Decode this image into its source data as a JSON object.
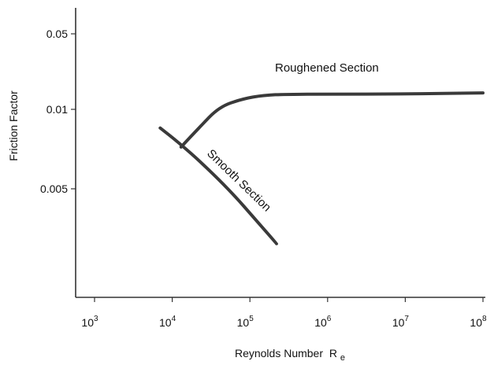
{
  "chart_data": {
    "type": "line",
    "title": "",
    "xlabel": "Reynolds Number",
    "xlabel_subscript": {
      "base": "R",
      "sub": "e"
    },
    "ylabel": "Friction Factor",
    "x_scale": "log",
    "x_ticks": [
      {
        "value": 1000,
        "base": "10",
        "exp": "3"
      },
      {
        "value": 10000,
        "base": "10",
        "exp": "4"
      },
      {
        "value": 100000,
        "base": "10",
        "exp": "5"
      },
      {
        "value": 1000000,
        "base": "10",
        "exp": "6"
      },
      {
        "value": 10000000,
        "base": "10",
        "exp": "7"
      },
      {
        "value": 100000000,
        "base": "10",
        "exp": "8"
      }
    ],
    "y_ticks": [
      {
        "value": 0.05,
        "label": "0.05"
      },
      {
        "value": 0.01,
        "label": "0.01"
      },
      {
        "value": 0.005,
        "label": "0.005"
      }
    ],
    "xlim": [
      500,
      120000000
    ],
    "y_ticks_at_fraction": [
      0.08,
      0.34,
      0.6
    ],
    "grid": false,
    "series": [
      {
        "name": "Smooth Section",
        "label": "Smooth Section",
        "color": "#3a3a3a",
        "points": [
          {
            "x": 7000,
            "y": 0.0085
          },
          {
            "x": 12000,
            "y": 0.0075
          },
          {
            "x": 25000,
            "y": 0.0062
          },
          {
            "x": 60000,
            "y": 0.0048
          },
          {
            "x": 120000,
            "y": 0.0038
          },
          {
            "x": 220000,
            "y": 0.0031
          }
        ]
      },
      {
        "name": "Roughened Section",
        "label": "Roughened Section",
        "color": "#3a3a3a",
        "points": [
          {
            "x": 13000,
            "y": 0.0072
          },
          {
            "x": 22000,
            "y": 0.0085
          },
          {
            "x": 40000,
            "y": 0.0105
          },
          {
            "x": 80000,
            "y": 0.0125
          },
          {
            "x": 150000,
            "y": 0.0135
          },
          {
            "x": 300000,
            "y": 0.0138
          },
          {
            "x": 1000000,
            "y": 0.0138
          },
          {
            "x": 10000000,
            "y": 0.0139
          },
          {
            "x": 100000000,
            "y": 0.0142
          }
        ]
      }
    ]
  }
}
